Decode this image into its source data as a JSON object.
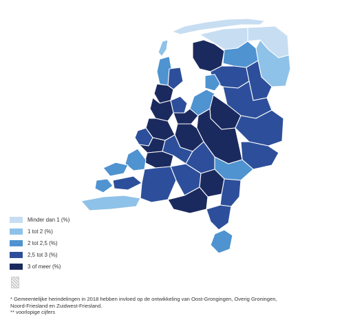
{
  "colors": {
    "minder_dan_1": "#c7ddf2",
    "1_tot_2": "#8fc2e8",
    "2_tot_2_5": "#4f93d0",
    "2_5_tot_3": "#2d4f9b",
    "3_of_meer": "#1b2a5e"
  },
  "legend": [
    {
      "label": "Minder dan 1 (%)",
      "color_key": "minder_dan_1"
    },
    {
      "label": "1 tot 2 (%)",
      "color_key": "1_tot_2"
    },
    {
      "label": "2 tot 2,5 (%)",
      "color_key": "2_tot_2_5"
    },
    {
      "label": "2,5 tot 3 (%)",
      "color_key": "2_5_tot_3"
    },
    {
      "label": "3 of meer (%)",
      "color_key": "3_of_meer"
    }
  ],
  "footnotes": {
    "line1": "* Gemeentelijke herindelingen in 2018 hebben invloed op de ontwikkeling van Oost-Grongingen, Overig Groningen,",
    "line2": "Noord-Friesland en Zuidwest-Friesland.",
    "line3": "** voorlopige cijfers"
  },
  "icons": {
    "hatch": "hatch-pattern-icon"
  }
}
